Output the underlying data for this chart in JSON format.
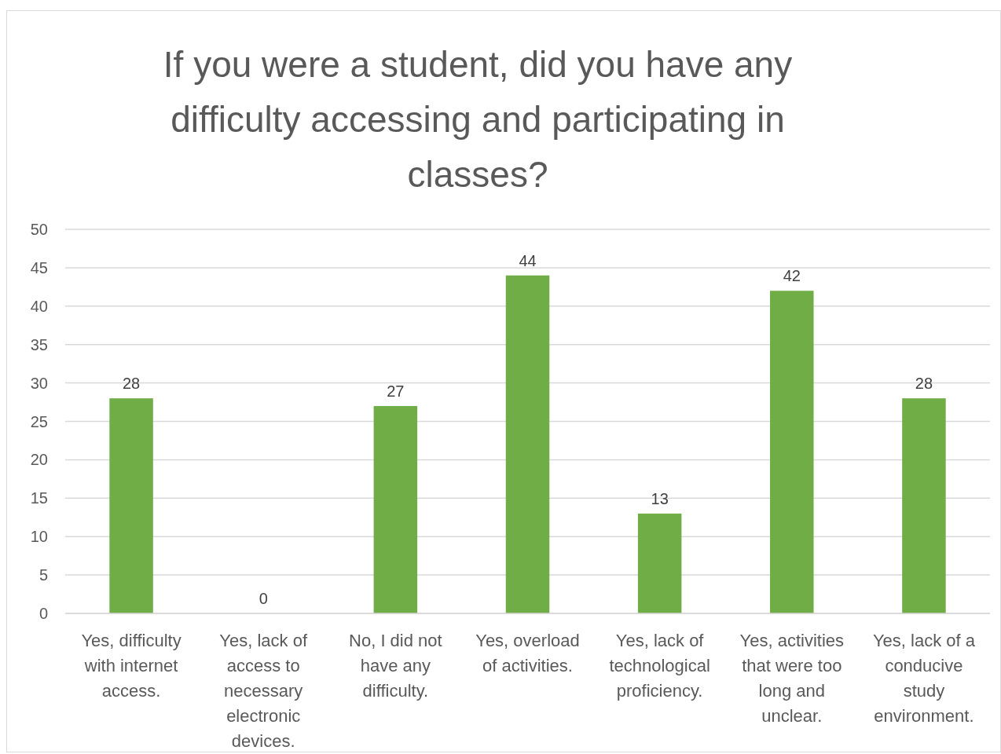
{
  "chart_data": {
    "type": "bar",
    "title": "If you were a student, did you have any difficulty accessing and participating in classes?",
    "categories": [
      "Yes, difficulty with internet access.",
      "Yes, lack of access to necessary electronic devices.",
      "No, I did not have any difficulty.",
      "Yes, overload of activities.",
      "Yes, lack of technological proficiency.",
      "Yes, activities that were too long and unclear.",
      "Yes, lack of a conducive study environment."
    ],
    "values": [
      28,
      0,
      27,
      44,
      13,
      42,
      28
    ],
    "color": "#70ad47",
    "ylim": [
      0,
      50
    ],
    "yticks": [
      0,
      5,
      10,
      15,
      20,
      25,
      30,
      35,
      40,
      45,
      50
    ],
    "grid": true,
    "data_labels": true
  }
}
